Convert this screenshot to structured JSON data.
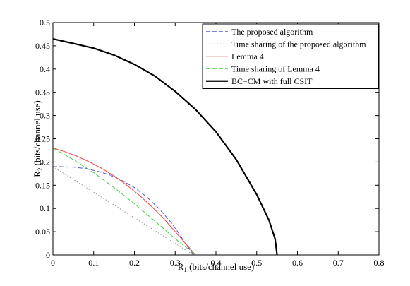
{
  "chart_data": {
    "type": "line",
    "xlabel": {
      "main": "R",
      "sub": "1",
      "rest": " (bits/channel use)"
    },
    "ylabel": {
      "main": "R",
      "sub": "2",
      "rest": " (bits/channel use)"
    },
    "xlim": [
      0,
      0.8
    ],
    "ylim": [
      0,
      0.5
    ],
    "xticks": [
      0,
      0.1,
      0.2,
      0.3,
      0.4,
      0.5,
      0.6,
      0.7,
      0.8
    ],
    "xtick_labels": [
      "0",
      "0.1",
      "0.2",
      "0.3",
      "0.4",
      "0.5",
      "0.6",
      "0.7",
      "0.8"
    ],
    "yticks": [
      0,
      0.05,
      0.1,
      0.15,
      0.2,
      0.25,
      0.3,
      0.35,
      0.4,
      0.45,
      0.5
    ],
    "ytick_labels": [
      "0",
      "0.05",
      "0.1",
      "0.15",
      "0.2",
      "0.25",
      "0.3",
      "0.35",
      "0.4",
      "0.45",
      "0.5"
    ],
    "grid": false,
    "legend_position": "top-right",
    "series": [
      {
        "name": "The proposed algorithm",
        "color": "#5555dd",
        "style": "dashed",
        "x": [
          0,
          0.02,
          0.05,
          0.08,
          0.11,
          0.14,
          0.17,
          0.2,
          0.23,
          0.26,
          0.29,
          0.31,
          0.33,
          0.345
        ],
        "y": [
          0.19,
          0.19,
          0.189,
          0.186,
          0.18,
          0.172,
          0.16,
          0.145,
          0.125,
          0.1,
          0.07,
          0.045,
          0.018,
          0.0
        ]
      },
      {
        "name": "Time sharing of the proposed algorithm",
        "color": "#999999",
        "style": "dotted",
        "x": [
          0,
          0.345
        ],
        "y": [
          0.19,
          0.0
        ]
      },
      {
        "name": "Lemma 4",
        "color": "#ee4444",
        "style": "solid",
        "x": [
          0,
          0.03,
          0.06,
          0.09,
          0.12,
          0.15,
          0.18,
          0.21,
          0.24,
          0.27,
          0.3,
          0.32,
          0.34,
          0.35
        ],
        "y": [
          0.23,
          0.222,
          0.212,
          0.2,
          0.186,
          0.17,
          0.151,
          0.13,
          0.106,
          0.08,
          0.05,
          0.03,
          0.01,
          0.0
        ]
      },
      {
        "name": "Time sharing of Lemma 4",
        "color": "#44cc44",
        "style": "dashed",
        "x": [
          0,
          0.05,
          0.1,
          0.15,
          0.2,
          0.25,
          0.3,
          0.35
        ],
        "y": [
          0.23,
          0.205,
          0.177,
          0.145,
          0.11,
          0.073,
          0.035,
          0.0
        ]
      },
      {
        "name": "BC−CM with full CSIT",
        "color": "#000000",
        "style": "solid",
        "x": [
          0,
          0.05,
          0.1,
          0.15,
          0.2,
          0.25,
          0.3,
          0.35,
          0.4,
          0.45,
          0.5,
          0.53,
          0.545,
          0.55
        ],
        "y": [
          0.465,
          0.455,
          0.445,
          0.43,
          0.41,
          0.385,
          0.352,
          0.313,
          0.265,
          0.205,
          0.13,
          0.075,
          0.035,
          0.0
        ]
      }
    ]
  }
}
